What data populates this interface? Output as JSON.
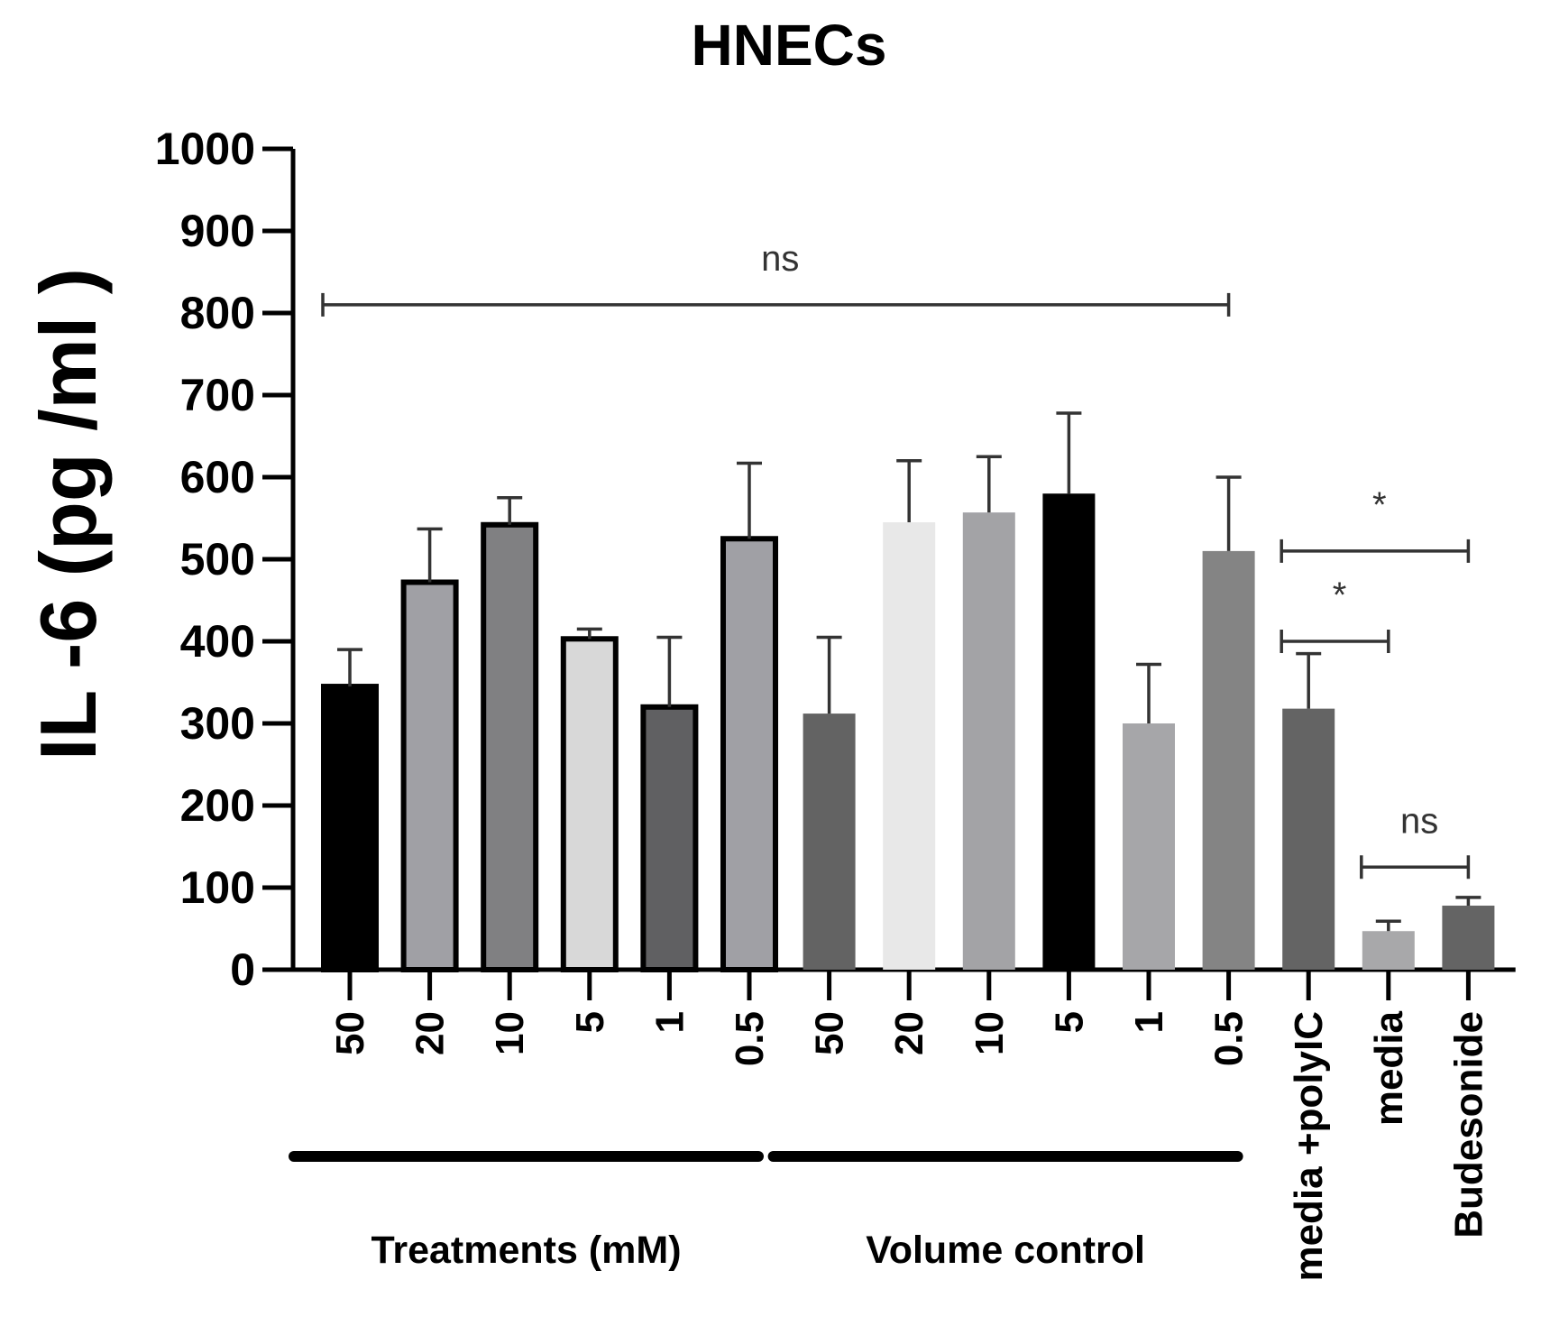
{
  "chart_data": {
    "type": "bar",
    "title": "HNECs",
    "ylabel": "IL -6 (pg /ml )",
    "xlabel": "",
    "ylim": [
      0,
      1000
    ],
    "yticks": [
      0,
      100,
      200,
      300,
      400,
      500,
      600,
      700,
      800,
      900,
      1000
    ],
    "categories": [
      "50",
      "20",
      "10",
      "5",
      "1",
      "0.5",
      "50",
      "20",
      "10",
      "5",
      "1",
      "0.5",
      "media +polyIC",
      "media",
      "Budesonide"
    ],
    "values": [
      345,
      472,
      542,
      403,
      320,
      525,
      312,
      545,
      557,
      580,
      300,
      510,
      318,
      47,
      78
    ],
    "errors": [
      45,
      65,
      33,
      12,
      85,
      92,
      93,
      75,
      68,
      98,
      72,
      90,
      67,
      12,
      10
    ],
    "colors": [
      "#000000",
      "#a0a0a5",
      "#808082",
      "#d8d8d8",
      "#606062",
      "#a0a0a5",
      "#636363",
      "#e8e8e8",
      "#a3a3a6",
      "#000000",
      "#a6a6a9",
      "#848484",
      "#646464",
      "#a8a8aa",
      "#646464"
    ],
    "outlined": [
      true,
      true,
      true,
      true,
      true,
      true,
      false,
      false,
      false,
      false,
      false,
      false,
      false,
      false,
      false
    ],
    "groups": [
      {
        "label": "Treatments (mM)",
        "from": 0,
        "to": 5
      },
      {
        "label": "Volume control",
        "from": 6,
        "to": 11
      }
    ],
    "significance": [
      {
        "label": "ns",
        "from": 0,
        "to": 11,
        "y": 810
      },
      {
        "label": "*",
        "from": 12,
        "to": 14,
        "y": 510
      },
      {
        "label": "*",
        "from": 12,
        "to": 13,
        "y": 400
      },
      {
        "label": "ns",
        "from": 13,
        "to": 14,
        "y": 125
      }
    ]
  }
}
